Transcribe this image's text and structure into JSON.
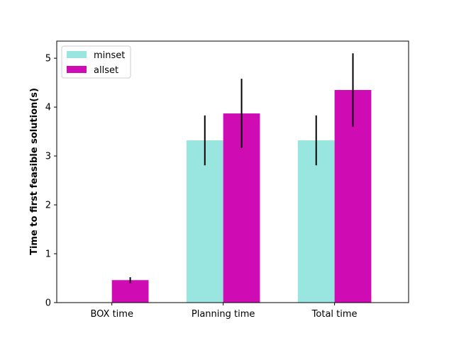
{
  "chart_data": {
    "type": "bar",
    "title": "",
    "xlabel": "",
    "ylabel": "Time to first feasible solution(s)",
    "categories": [
      "BOX time",
      "Planning time",
      "Total time"
    ],
    "series": [
      {
        "name": "minset",
        "color": "#99e6e1",
        "values": [
          0,
          3.32,
          3.32
        ],
        "errors": [
          0,
          0.51,
          0.51
        ]
      },
      {
        "name": "allset",
        "color": "#cf0cb3",
        "values": [
          0.46,
          3.87,
          4.35
        ],
        "errors": [
          0.06,
          0.71,
          0.75
        ]
      }
    ],
    "ylim": [
      0,
      5.35
    ],
    "yticks": [
      0,
      1,
      2,
      3,
      4,
      5
    ],
    "legend_position": "top-left",
    "grid": false
  }
}
